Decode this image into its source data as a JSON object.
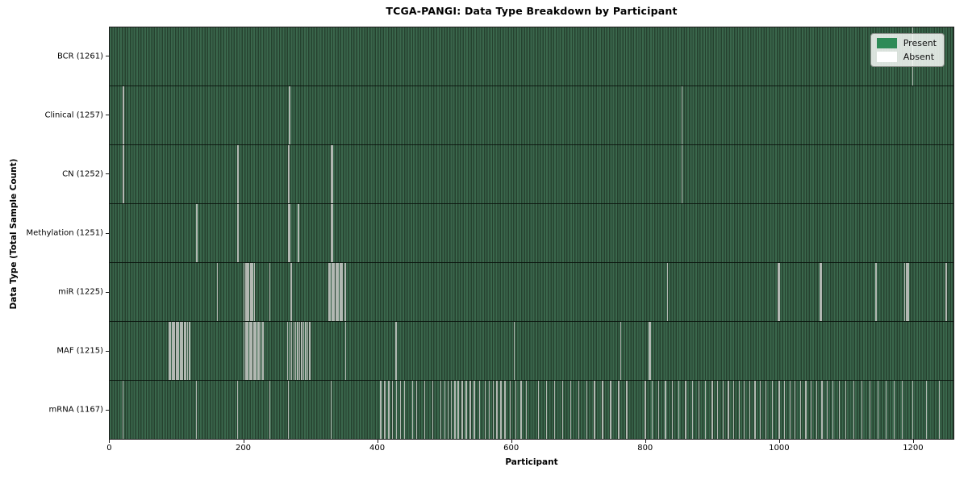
{
  "title": "TCGA-PANGI: Data Type Breakdown by Participant",
  "xlabel": "Participant",
  "ylabel": "Data Type (Total Sample Count)",
  "legend": {
    "present_label": "Present",
    "absent_label": "Absent"
  },
  "colors": {
    "present_legend": "#2e8b57",
    "present_fill_light": "#3a674c",
    "present_fill_dark": "#26422f",
    "absent_legend": "#ffffff",
    "absent_stripe": "#b2b8b2",
    "legend_bg": "#f0f2f0",
    "axis_line": "#1c1c1c"
  },
  "chart_data": {
    "type": "heatmap",
    "title": "TCGA-PANGI: Data Type Breakdown by Participant",
    "xlabel": "Participant",
    "ylabel": "Data Type (Total Sample Count)",
    "legend": [
      "Present",
      "Absent"
    ],
    "legend_position": "upper right",
    "grid": false,
    "x_range": [
      0,
      1262
    ],
    "x_ticks": [
      0,
      200,
      400,
      600,
      800,
      1000,
      1200
    ],
    "total_participants": 1262,
    "rows": [
      {
        "data_type": "BCR",
        "label": "BCR (1261)",
        "present_count": 1261,
        "absent_count": 1,
        "absent_participants": [
          1200
        ]
      },
      {
        "data_type": "Clinical",
        "label": "Clinical (1257)",
        "present_count": 1257,
        "absent_count": 5,
        "absent_participants": [
          19,
          20,
          267,
          268,
          855
        ]
      },
      {
        "data_type": "CN",
        "label": "CN (1252)",
        "present_count": 1252,
        "absent_count": 10,
        "absent_participants": [
          19,
          20,
          190,
          191,
          266,
          267,
          330,
          331,
          332,
          855
        ]
      },
      {
        "data_type": "Methylation",
        "label": "Methylation (1251)",
        "present_count": 1251,
        "absent_count": 11,
        "absent_participants": [
          128,
          129,
          190,
          191,
          266,
          267,
          268,
          281,
          330,
          331,
          332
        ]
      },
      {
        "data_type": "miR",
        "label": "miR (1225)",
        "present_count": 1225,
        "absent_count": 37,
        "absent_participants": [
          160,
          200,
          202,
          204,
          205,
          207,
          209,
          211,
          213,
          215,
          238,
          270,
          271,
          327,
          329,
          331,
          333,
          335,
          337,
          339,
          341,
          343,
          345,
          347,
          350,
          352,
          833,
          998,
          1000,
          1061,
          1063,
          1145,
          1188,
          1190,
          1192,
          1194,
          1250
        ]
      },
      {
        "data_type": "MAF",
        "label": "MAF (1215)",
        "present_count": 1215,
        "absent_count": 47,
        "absent_participants": [
          88,
          90,
          92,
          94,
          96,
          98,
          100,
          102,
          104,
          106,
          108,
          110,
          112,
          115,
          118,
          200,
          202,
          204,
          206,
          208,
          210,
          212,
          214,
          216,
          218,
          220,
          222,
          225,
          228,
          265,
          268,
          271,
          274,
          277,
          280,
          283,
          286,
          289,
          292,
          295,
          298,
          352,
          427,
          604,
          763,
          806,
          808
        ]
      },
      {
        "data_type": "mRNA",
        "label": "mRNA (1167)",
        "present_count": 1167,
        "absent_count": 95,
        "absent_participants": [
          19,
          128,
          190,
          238,
          266,
          330,
          404,
          410,
          416,
          422,
          428,
          434,
          440,
          452,
          458,
          470,
          482,
          494,
          500,
          505,
          510,
          515,
          520,
          526,
          532,
          538,
          544,
          552,
          560,
          566,
          572,
          578,
          584,
          590,
          598,
          606,
          614,
          622,
          640,
          652,
          664,
          676,
          688,
          700,
          712,
          724,
          736,
          748,
          760,
          772,
          800,
          810,
          820,
          830,
          840,
          850,
          860,
          870,
          880,
          890,
          900,
          908,
          916,
          924,
          932,
          940,
          948,
          956,
          964,
          972,
          980,
          990,
          1000,
          1008,
          1016,
          1024,
          1032,
          1040,
          1048,
          1056,
          1064,
          1072,
          1080,
          1090,
          1100,
          1112,
          1124,
          1136,
          1148,
          1160,
          1172,
          1184,
          1200,
          1220,
          1240
        ]
      }
    ]
  }
}
